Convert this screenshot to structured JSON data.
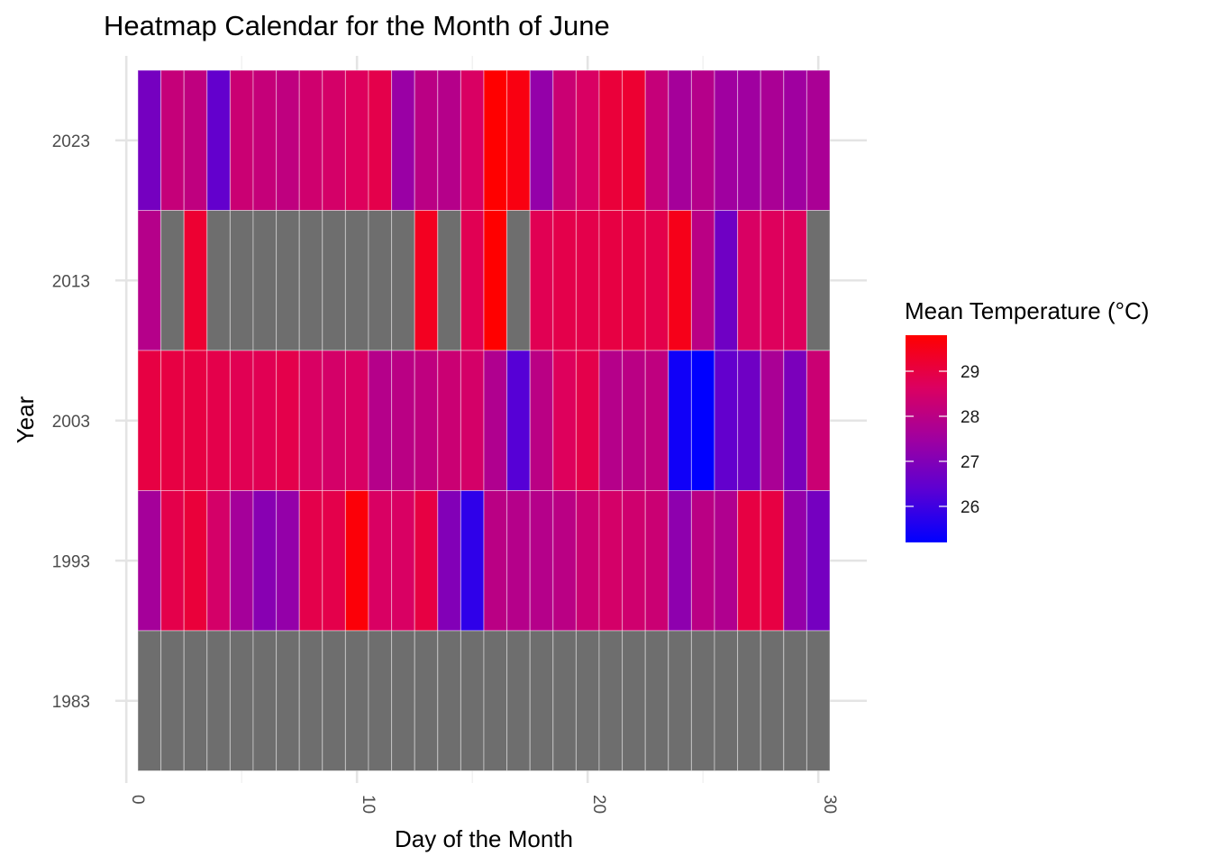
{
  "chart_data": {
    "type": "heatmap",
    "title": "Heatmap Calendar for the Month of June",
    "xlabel": "Day of the Month",
    "ylabel": "Year",
    "x_ticks": [
      0,
      10,
      20,
      30
    ],
    "y_ticks": [
      "1983",
      "1993",
      "2003",
      "2013",
      "2023"
    ],
    "xlim": [
      -0.3,
      31.8
    ],
    "days": [
      1,
      2,
      3,
      4,
      5,
      6,
      7,
      8,
      9,
      10,
      11,
      12,
      13,
      14,
      15,
      16,
      17,
      18,
      19,
      20,
      21,
      22,
      23,
      24,
      25,
      26,
      27,
      28,
      29,
      30
    ],
    "grid": true,
    "na_color": "#6e6e6e",
    "legend": {
      "title": "Mean Temperature (°C)",
      "position": "right",
      "ticks": [
        26,
        27,
        28,
        29
      ],
      "min": 25.2,
      "max": 29.8,
      "low_color": "#0000ff",
      "high_color": "#ff0000"
    },
    "rows": [
      {
        "year": "2023",
        "values": [
          26.8,
          28.2,
          28.1,
          26.5,
          28.3,
          28.2,
          28.1,
          28.4,
          28.5,
          28.7,
          28.9,
          27.4,
          28.0,
          27.9,
          28.6,
          29.8,
          29.6,
          27.3,
          28.3,
          28.6,
          29.1,
          29.2,
          28.2,
          27.6,
          27.9,
          27.5,
          27.5,
          27.7,
          27.5,
          27.7
        ]
      },
      {
        "year": "2013",
        "values": [
          27.9,
          null,
          29.2,
          null,
          null,
          null,
          null,
          null,
          null,
          null,
          null,
          null,
          29.4,
          null,
          28.8,
          29.8,
          null,
          28.8,
          28.9,
          28.9,
          29.0,
          29.0,
          28.9,
          29.5,
          28.0,
          26.7,
          28.6,
          28.7,
          28.7,
          null
        ]
      },
      {
        "year": "2003",
        "values": [
          29.0,
          29.0,
          29.0,
          28.9,
          28.8,
          28.8,
          28.9,
          28.6,
          28.5,
          28.6,
          27.9,
          28.0,
          28.1,
          28.3,
          28.5,
          27.8,
          26.3,
          28.0,
          28.7,
          28.9,
          27.9,
          28.0,
          28.1,
          25.4,
          25.2,
          26.5,
          26.7,
          27.7,
          26.9,
          28.3
        ]
      },
      {
        "year": "1993",
        "values": [
          27.6,
          28.9,
          29.1,
          28.5,
          27.6,
          27.1,
          27.3,
          28.9,
          28.9,
          29.7,
          28.6,
          28.6,
          29.0,
          27.0,
          25.8,
          28.0,
          27.9,
          27.9,
          28.0,
          28.3,
          28.5,
          28.4,
          28.3,
          27.2,
          28.0,
          27.8,
          29.0,
          29.0,
          27.3,
          26.8
        ]
      },
      {
        "year": "1983",
        "values": [
          null,
          null,
          null,
          null,
          null,
          null,
          null,
          null,
          null,
          null,
          null,
          null,
          null,
          null,
          null,
          null,
          null,
          null,
          null,
          null,
          null,
          null,
          null,
          null,
          null,
          null,
          null,
          null,
          null,
          null
        ]
      }
    ]
  }
}
